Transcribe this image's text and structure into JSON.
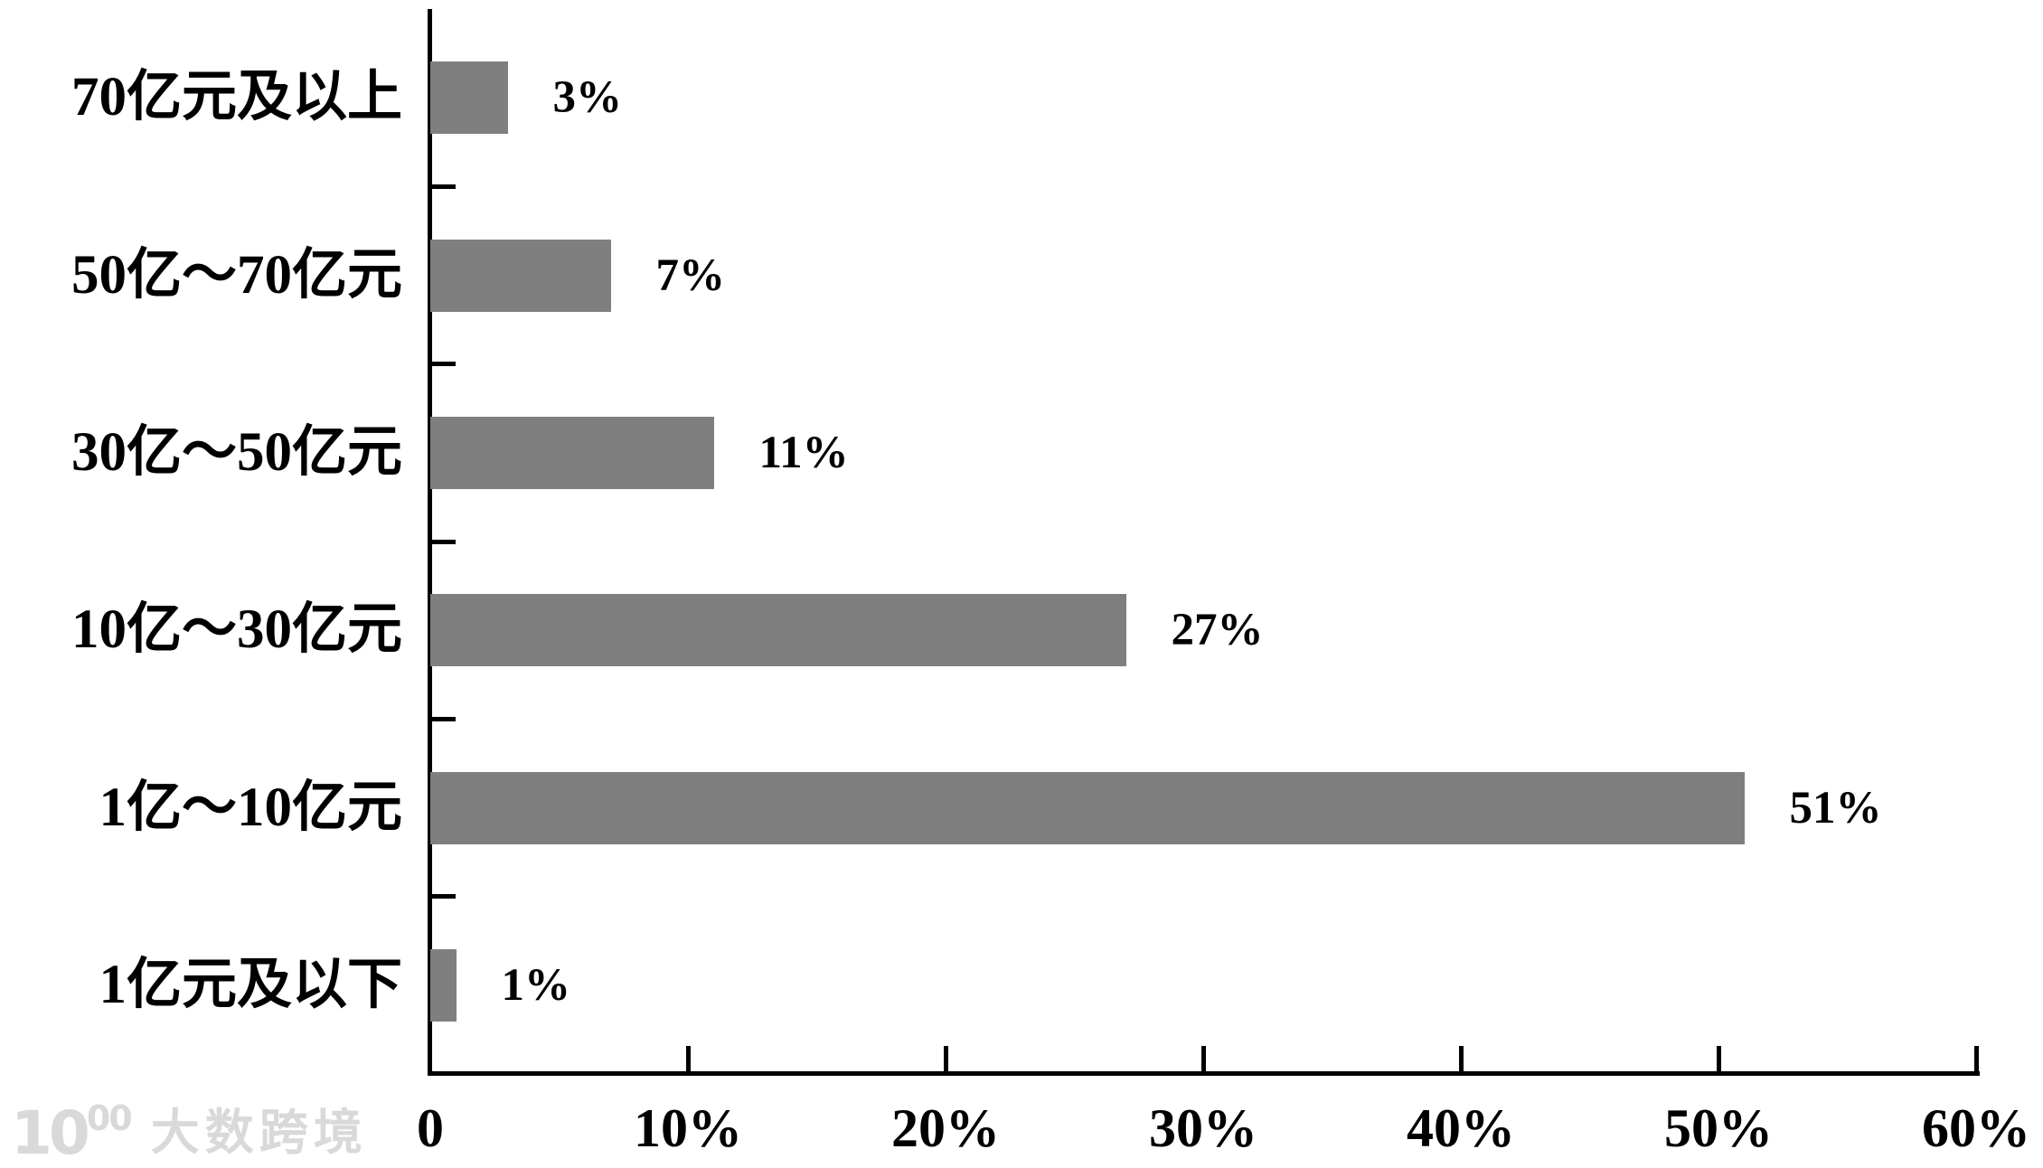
{
  "chart_data": {
    "type": "bar",
    "orientation": "horizontal",
    "title": "",
    "xlabel": "",
    "ylabel": "",
    "categories": [
      "70亿元及以上",
      "50亿～70亿元",
      "30亿～50亿元",
      "10亿～30亿元",
      "1亿～10亿元",
      "1亿元及以下"
    ],
    "values": [
      3,
      7,
      11,
      27,
      51,
      1
    ],
    "value_labels": [
      "3%",
      "7%",
      "11%",
      "27%",
      "51%",
      "1%"
    ],
    "x_tick_labels": [
      "0",
      "10%",
      "20%",
      "30%",
      "40%",
      "50%",
      "60%"
    ],
    "xlim": [
      0,
      60
    ],
    "grid": false,
    "legend": "none",
    "bar_color": "#7f7f7f",
    "axis_color": "#000000",
    "text_color": "#000000"
  },
  "watermark": {
    "logo_text": "10",
    "logo_sup": "00",
    "brand_text": "大数跨境"
  }
}
